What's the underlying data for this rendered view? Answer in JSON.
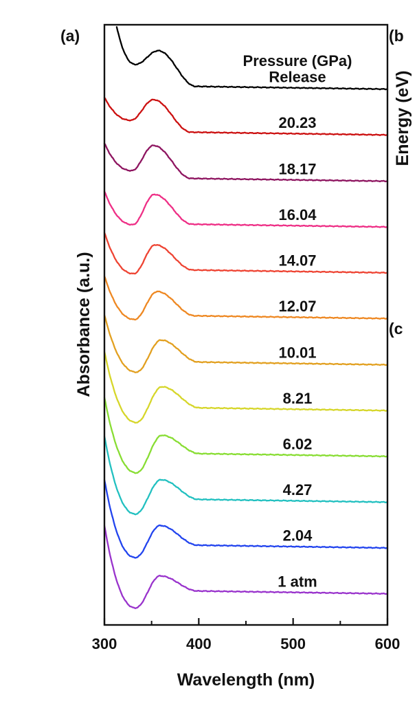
{
  "panel_labels": {
    "a": "(a)",
    "b": "(b",
    "c": "(c"
  },
  "side_axis_label": "Energy (eV)",
  "legend_title": "Pressure (GPa)",
  "chart_data": {
    "type": "line",
    "title": "",
    "xlabel": "Wavelength (nm)",
    "ylabel": "Absorbance (a.u.)",
    "xlim": [
      300,
      600
    ],
    "xticks": [
      300,
      400,
      500,
      600
    ],
    "grid": false,
    "legend": "inline labels above each curve, right side",
    "series": [
      {
        "name": "Release",
        "color": "#000000",
        "offset": 10.0,
        "start": 3.1,
        "valley": 0.62,
        "peak": 0.92,
        "tail": 0.08,
        "peak_x": 357,
        "valley_x": 333
      },
      {
        "name": "20.23",
        "color": "#cc1111",
        "offset": 9.0,
        "start": 0.9,
        "valley": 0.4,
        "peak": 0.85,
        "tail": 0.08,
        "peak_x": 352,
        "valley_x": 328
      },
      {
        "name": "18.17",
        "color": "#8e1560",
        "offset": 8.0,
        "start": 0.9,
        "valley": 0.3,
        "peak": 0.85,
        "tail": 0.07,
        "peak_x": 352,
        "valley_x": 329
      },
      {
        "name": "16.04",
        "color": "#ee2f86",
        "offset": 7.0,
        "start": 0.85,
        "valley": 0.12,
        "peak": 0.78,
        "tail": 0.07,
        "peak_x": 353,
        "valley_x": 330
      },
      {
        "name": "14.07",
        "color": "#ee4433",
        "offset": 6.0,
        "start": 0.95,
        "valley": 0.05,
        "peak": 0.68,
        "tail": 0.07,
        "peak_x": 354,
        "valley_x": 331
      },
      {
        "name": "12.07",
        "color": "#ee8822",
        "offset": 5.0,
        "start": 1.0,
        "valley": 0.05,
        "peak": 0.66,
        "tail": 0.07,
        "peak_x": 356,
        "valley_x": 332
      },
      {
        "name": "10.01",
        "color": "#e2a020",
        "offset": 4.0,
        "start": 1.15,
        "valley": -0.1,
        "peak": 0.6,
        "tail": 0.06,
        "peak_x": 360,
        "valley_x": 334
      },
      {
        "name": "8.21",
        "color": "#d6d62a",
        "offset": 3.0,
        "start": 1.35,
        "valley": -0.2,
        "peak": 0.58,
        "tail": 0.06,
        "peak_x": 361,
        "valley_x": 334
      },
      {
        "name": "6.02",
        "color": "#88dd33",
        "offset": 2.0,
        "start": 1.35,
        "valley": -0.3,
        "peak": 0.52,
        "tail": 0.06,
        "peak_x": 361,
        "valley_x": 334
      },
      {
        "name": "4.27",
        "color": "#22c0c0",
        "offset": 1.0,
        "start": 1.5,
        "valley": -0.2,
        "peak": 0.55,
        "tail": 0.06,
        "peak_x": 360,
        "valley_x": 333
      },
      {
        "name": "2.04",
        "color": "#2244ee",
        "offset": 0.0,
        "start": 1.55,
        "valley": -0.15,
        "peak": 0.55,
        "tail": 0.06,
        "peak_x": 359,
        "valley_x": 333
      },
      {
        "name": "1 atm",
        "color": "#9933cc",
        "offset": -1.0,
        "start": 1.55,
        "valley": -0.25,
        "peak": 0.45,
        "tail": 0.06,
        "peak_x": 359,
        "valley_x": 333
      }
    ]
  }
}
